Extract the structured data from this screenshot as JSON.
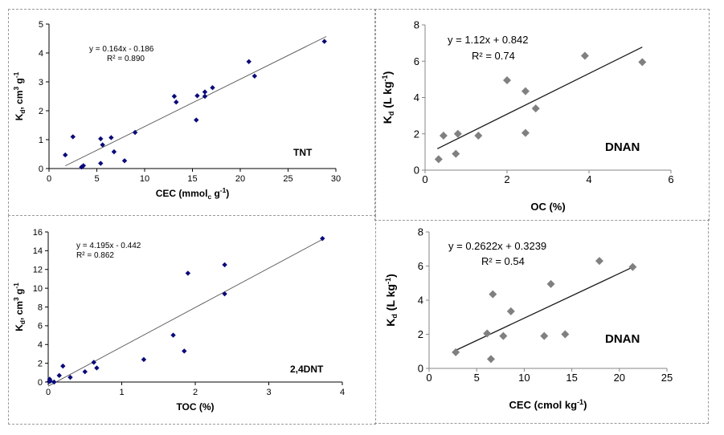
{
  "chart_data": [
    {
      "type": "scatter",
      "xlabel": "CEC (mmolc g-1)",
      "xlabel_main": "CEC (mmol",
      "xlabel_sub": "c",
      "xlabel_tail": " g",
      "xlabel_sup": "-1",
      "xlabel_close": ")",
      "ylabel": "Kd, cm3 g-1",
      "ylabel_main": "K",
      "ylabel_sub": "d",
      "ylabel_mid": ", cm",
      "ylabel_sup1": "3",
      "ylabel_mid2": " g",
      "ylabel_sup2": "-1",
      "xlim": [
        0,
        30
      ],
      "ylim": [
        0,
        5
      ],
      "xticks": [
        "0",
        "5",
        "10",
        "15",
        "20",
        "25",
        "30"
      ],
      "yticks": [
        "0",
        "1",
        "2",
        "3",
        "4",
        "5"
      ],
      "equation": "y = 0.164x - 0.186",
      "r2": "R² = 0.890",
      "label": "TNT",
      "trend": {
        "slope": 0.164,
        "intercept": -0.186,
        "x_range": [
          1.7,
          29
        ]
      },
      "marker": "diamond",
      "color": "#0a0a7a",
      "points": [
        [
          1.7,
          0.47
        ],
        [
          2.5,
          1.1
        ],
        [
          3.4,
          0.05
        ],
        [
          3.6,
          0.1
        ],
        [
          5.4,
          0.18
        ],
        [
          5.4,
          1.03
        ],
        [
          5.6,
          0.82
        ],
        [
          6.5,
          1.07
        ],
        [
          6.8,
          0.58
        ],
        [
          7.9,
          0.27
        ],
        [
          9.0,
          1.25
        ],
        [
          13.1,
          2.5
        ],
        [
          13.3,
          2.3
        ],
        [
          15.4,
          1.68
        ],
        [
          15.5,
          2.52
        ],
        [
          16.3,
          2.5
        ],
        [
          16.3,
          2.65
        ],
        [
          17.1,
          2.8
        ],
        [
          20.9,
          3.7
        ],
        [
          21.5,
          3.2
        ],
        [
          28.8,
          4.4
        ]
      ]
    },
    {
      "type": "scatter",
      "xlabel": "OC (%)",
      "ylabel": "Kd (L kg-1)",
      "ylabel_main": "K",
      "ylabel_sub": "d",
      "ylabel_mid": " (L kg",
      "ylabel_sup": "-1",
      "ylabel_close": ")",
      "xlim": [
        0,
        6
      ],
      "ylim": [
        0,
        8
      ],
      "xticks": [
        "0",
        "2",
        "4",
        "6"
      ],
      "yticks": [
        "0",
        "2",
        "4",
        "6",
        "8"
      ],
      "equation": "y = 1.12x + 0.842",
      "r2": "R² = 0.74",
      "label": "DNAN",
      "trend": {
        "slope": 1.12,
        "intercept": 0.842,
        "x_range": [
          0.3,
          5.3
        ]
      },
      "marker": "diamond",
      "color": "#808080",
      "points": [
        [
          0.33,
          0.6
        ],
        [
          0.45,
          1.9
        ],
        [
          0.75,
          0.9
        ],
        [
          0.8,
          2.0
        ],
        [
          1.3,
          1.9
        ],
        [
          2.0,
          4.95
        ],
        [
          2.45,
          2.05
        ],
        [
          2.45,
          4.35
        ],
        [
          2.7,
          3.4
        ],
        [
          3.9,
          6.3
        ],
        [
          5.3,
          5.95
        ]
      ]
    },
    {
      "type": "scatter",
      "xlabel": "TOC (%)",
      "ylabel": "Kd, cm3 g-1",
      "ylabel_main": "K",
      "ylabel_sub": "d",
      "ylabel_mid": ", cm",
      "ylabel_sup1": "3",
      "ylabel_mid2": " g",
      "ylabel_sup2": "-1",
      "xlim": [
        0,
        4
      ],
      "ylim": [
        0,
        16
      ],
      "xticks": [
        "0",
        "1",
        "2",
        "3",
        "4"
      ],
      "yticks": [
        "0",
        "2",
        "4",
        "6",
        "8",
        "10",
        "12",
        "14",
        "16"
      ],
      "equation": "y = 4.195x - 0.442",
      "r2": "R² = 0.862",
      "label": "2,4DNT",
      "trend": {
        "slope": 4.195,
        "intercept": -0.442,
        "x_range": [
          0.0,
          3.73
        ]
      },
      "marker": "diamond",
      "color": "#0a0a7a",
      "points": [
        [
          0.01,
          0.05
        ],
        [
          0.02,
          0.3
        ],
        [
          0.03,
          0.1
        ],
        [
          0.08,
          0.0
        ],
        [
          0.15,
          0.7
        ],
        [
          0.2,
          1.7
        ],
        [
          0.3,
          0.5
        ],
        [
          0.5,
          1.1
        ],
        [
          0.62,
          2.1
        ],
        [
          0.66,
          1.5
        ],
        [
          1.3,
          2.4
        ],
        [
          1.7,
          5.0
        ],
        [
          1.85,
          3.3
        ],
        [
          1.9,
          11.6
        ],
        [
          2.4,
          12.5
        ],
        [
          2.4,
          9.4
        ],
        [
          3.73,
          15.3
        ]
      ]
    },
    {
      "type": "scatter",
      "xlabel": "CEC (cmol kg-1)",
      "xlabel_main": "CEC (cmol kg",
      "xlabel_sup": "-1",
      "xlabel_close": ")",
      "ylabel": "Kd (L kg-1)",
      "ylabel_main": "K",
      "ylabel_sub": "d",
      "ylabel_mid": " (L kg",
      "ylabel_sup": "-1",
      "ylabel_close": ")",
      "xlim": [
        0,
        25
      ],
      "ylim": [
        0,
        8
      ],
      "xticks": [
        "0",
        "5",
        "10",
        "15",
        "20",
        "25"
      ],
      "yticks": [
        "0",
        "2",
        "4",
        "6",
        "8"
      ],
      "equation": "y = 0.2622x + 0.3239",
      "r2": "R² = 0.54",
      "label": "DNAN",
      "trend": {
        "slope": 0.2622,
        "intercept": 0.3239,
        "x_range": [
          2.8,
          21.5
        ]
      },
      "marker": "diamond",
      "color": "#808080",
      "points": [
        [
          2.8,
          0.95
        ],
        [
          6.1,
          2.05
        ],
        [
          6.5,
          0.55
        ],
        [
          6.7,
          4.35
        ],
        [
          7.8,
          1.9
        ],
        [
          8.6,
          3.35
        ],
        [
          12.1,
          1.9
        ],
        [
          12.8,
          4.95
        ],
        [
          14.3,
          2.0
        ],
        [
          17.9,
          6.3
        ],
        [
          21.4,
          5.95
        ]
      ]
    }
  ]
}
